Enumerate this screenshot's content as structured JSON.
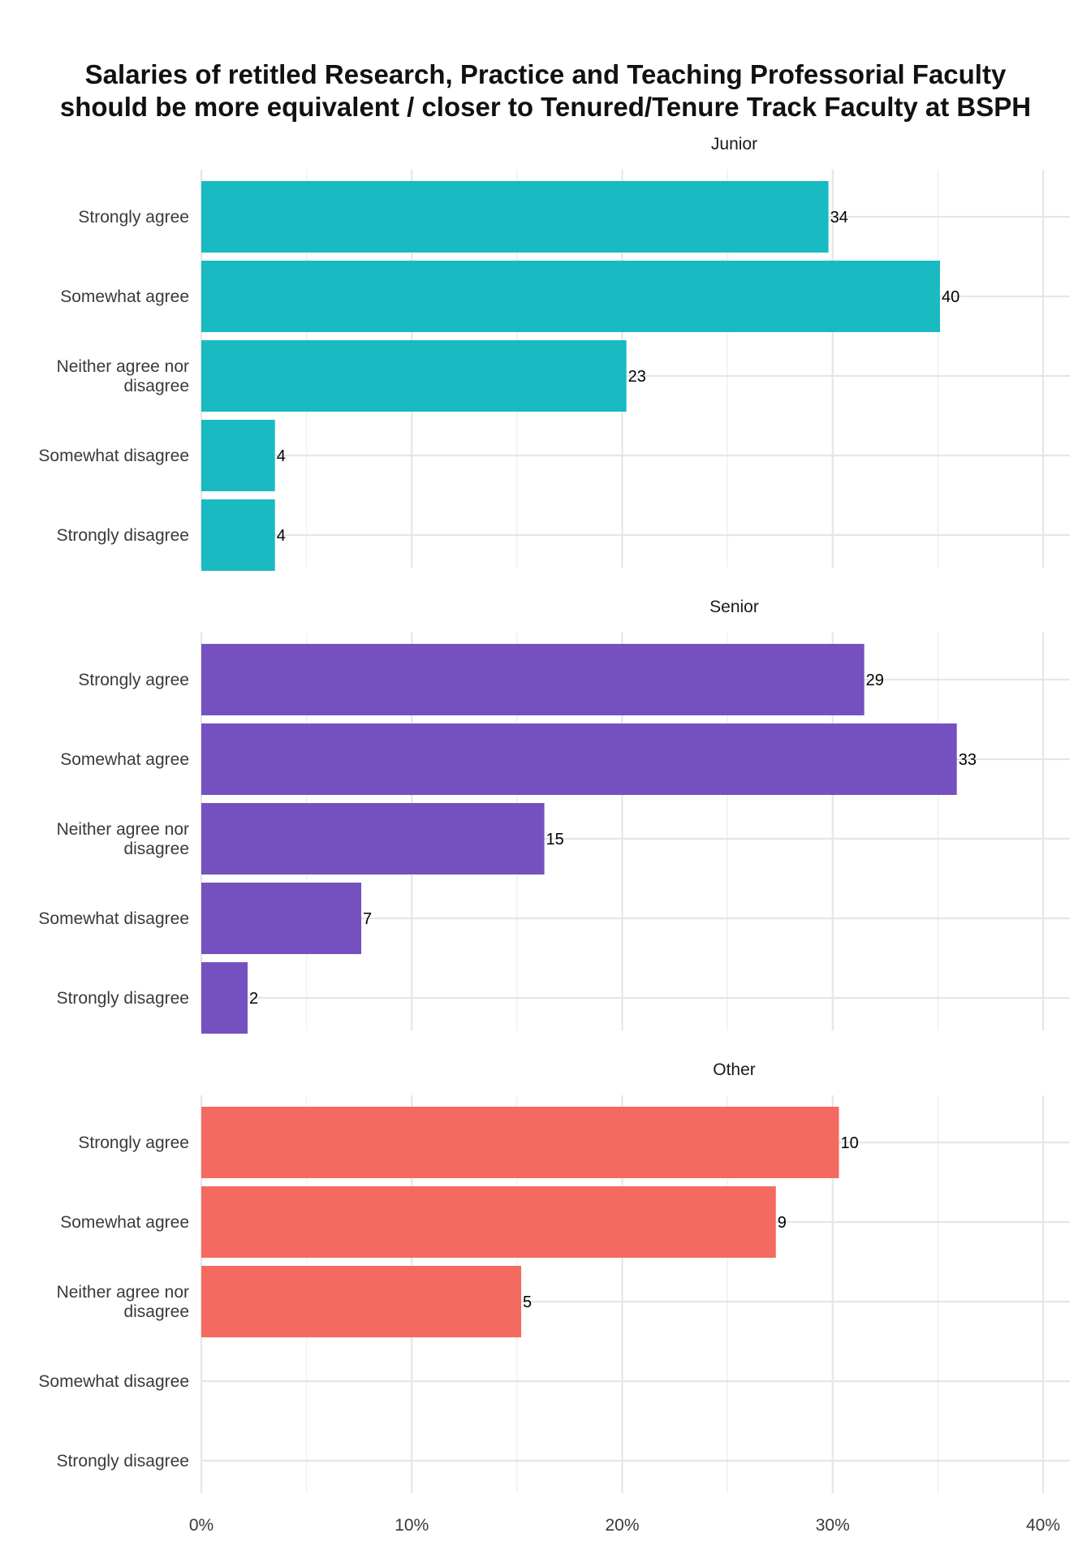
{
  "chart_data": {
    "type": "bar",
    "orientation": "horizontal",
    "title_lines": [
      "Salaries of retitled Research, Practice and Teaching Professorial Faculty",
      "should be more equivalent / closer to Tenured/Tenure Track Faculty at BSPH"
    ],
    "categories": [
      "Strongly agree",
      "Somewhat agree",
      "Neither agree nor disagree",
      "Somewhat disagree",
      "Strongly disagree"
    ],
    "category_label_lines": [
      [
        "Strongly agree"
      ],
      [
        "Somewhat agree"
      ],
      [
        "Neither agree nor",
        "disagree"
      ],
      [
        "Somewhat disagree"
      ],
      [
        "Strongly disagree"
      ]
    ],
    "x_unit": "percent",
    "xlim": [
      0,
      41.3
    ],
    "x_ticks": [
      0,
      10,
      20,
      30,
      40
    ],
    "x_tick_labels": [
      "0%",
      "10%",
      "20%",
      "30%",
      "40%"
    ],
    "grid": true,
    "facets": [
      {
        "name": "Junior",
        "color": "#19BAC2",
        "counts": [
          34,
          40,
          23,
          4,
          4
        ],
        "percents": [
          29.8,
          35.1,
          20.2,
          3.5,
          3.5
        ]
      },
      {
        "name": "Senior",
        "color": "#7551C0",
        "counts": [
          29,
          33,
          15,
          7,
          2
        ],
        "percents": [
          31.5,
          35.9,
          16.3,
          7.6,
          2.2
        ]
      },
      {
        "name": "Other",
        "color": "#F46A60",
        "counts": [
          10,
          9,
          5,
          null,
          null
        ],
        "percents": [
          30.3,
          27.3,
          15.2,
          null,
          null
        ]
      }
    ]
  }
}
